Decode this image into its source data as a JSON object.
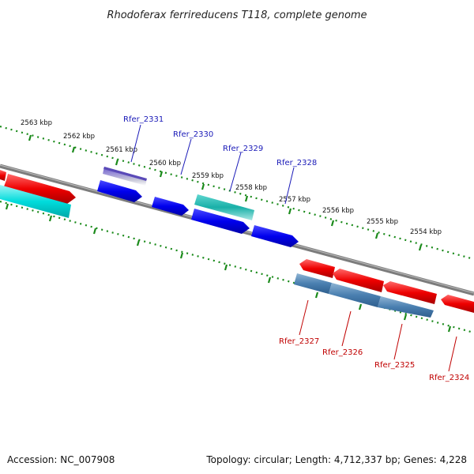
{
  "title": "Rhodoferax ferrireducens T118, complete genome",
  "footer": {
    "accession": "Accession: NC_007908",
    "summary": "Topology: circular; Length: 4,712,337 bp; Genes: 4,228"
  },
  "scale_labels": [
    "2563 kbp",
    "2562 kbp",
    "2561 kbp",
    "2560 kbp",
    "2559 kbp",
    "2558 kbp",
    "2557 kbp",
    "2556 kbp",
    "2555 kbp",
    "2554 kbp"
  ],
  "gene_labels_top": [
    "Rfer_2331",
    "Rfer_2330",
    "Rfer_2329",
    "Rfer_2328"
  ],
  "gene_labels_bottom": [
    "Rfer_2327",
    "Rfer_2326",
    "Rfer_2325",
    "Rfer_2324"
  ],
  "colors": {
    "backbone": "#808080",
    "scale_dots": "#1a8a1a",
    "cds_forward": "#0000ee",
    "cds_reverse": "#ee0000",
    "rna": "#00dddd",
    "feature_purple": "#7a6ad0",
    "feature_steel": "#4a7fb0",
    "label_top": "#1a1ab8",
    "label_bottom": "#c00000"
  }
}
